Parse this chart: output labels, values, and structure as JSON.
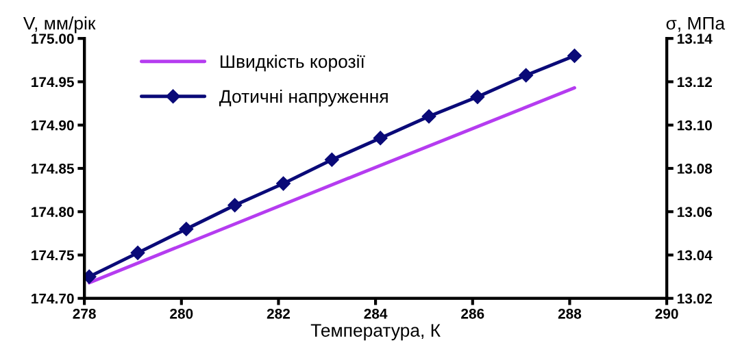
{
  "chart_data": {
    "type": "line",
    "xlabel": "Температура, К",
    "ylabel": "V, мм/рік",
    "y2label": "σ, МПа",
    "xlim": [
      278,
      290
    ],
    "xticks": [
      278,
      280,
      282,
      284,
      286,
      288,
      290
    ],
    "ylim": [
      174.7,
      175.0
    ],
    "yticks": [
      {
        "value": 174.7,
        "label": "174.70"
      },
      {
        "value": 174.75,
        "label": "174.75"
      },
      {
        "value": 174.8,
        "label": "174.80"
      },
      {
        "value": 174.85,
        "label": "174.85"
      },
      {
        "value": 174.9,
        "label": "174.90"
      },
      {
        "value": 174.95,
        "label": "174.95"
      },
      {
        "value": 175.0,
        "label": "175.00"
      }
    ],
    "y2lim": [
      13.02,
      13.14
    ],
    "y2ticks": [
      {
        "value": 13.02,
        "label": "13.02"
      },
      {
        "value": 13.04,
        "label": "13.04"
      },
      {
        "value": 13.06,
        "label": "13.06"
      },
      {
        "value": 13.08,
        "label": "13.08"
      },
      {
        "value": 13.1,
        "label": "13.10"
      },
      {
        "value": 13.12,
        "label": "13.12"
      },
      {
        "value": 13.14,
        "label": "13.14"
      }
    ],
    "legend": "top left",
    "grid": false,
    "series": [
      {
        "name": "Швидкість корозії",
        "color": "#b53cf0",
        "x": [
          278.1,
          283.1,
          288.1
        ],
        "values": [
          174.718,
          174.831,
          174.943
        ],
        "marker": "none"
      },
      {
        "name": "Дотичні напруження",
        "color": "#0a0a78",
        "axis": "y2",
        "x": [
          278.1,
          279.1,
          280.1,
          281.1,
          282.1,
          283.1,
          284.1,
          285.1,
          286.1,
          287.1,
          288.1
        ],
        "values": [
          13.03,
          13.041,
          13.052,
          13.063,
          13.073,
          13.084,
          13.094,
          13.104,
          13.113,
          13.123,
          13.132
        ],
        "marker": "diamond"
      }
    ]
  }
}
